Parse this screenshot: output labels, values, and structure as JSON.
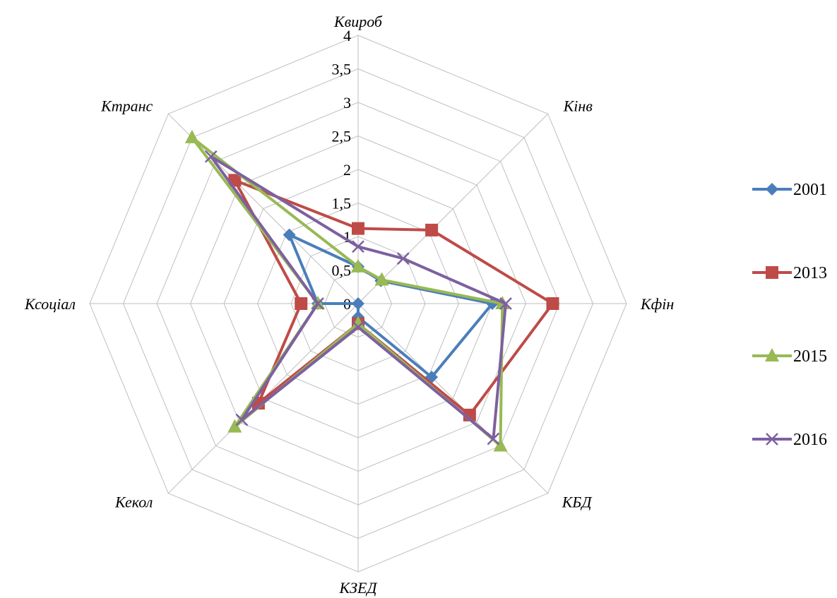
{
  "chart_data": {
    "type": "radar",
    "title": "",
    "axes": [
      "Квироб",
      "Кінв",
      "Кфін",
      "КБД",
      "КЗЕД",
      "Кекол",
      "Ксоціал",
      "Ктранс"
    ],
    "ticks": [
      "0",
      "0,5",
      "1",
      "1,5",
      "2",
      "2,5",
      "3",
      "3,5",
      "4"
    ],
    "range": [
      0,
      4
    ],
    "grid": true,
    "legend_position": "right",
    "series": [
      {
        "name": "2001",
        "color": "#4a7ebb",
        "marker": "diamond",
        "values": [
          0.55,
          0.48,
          2.0,
          1.55,
          0.2,
          0.0,
          0.6,
          1.45
        ]
      },
      {
        "name": "2013",
        "color": "#be4b48",
        "marker": "square",
        "values": [
          1.12,
          1.55,
          2.9,
          2.35,
          0.3,
          2.1,
          0.85,
          2.6
        ]
      },
      {
        "name": "2015",
        "color": "#98b954",
        "marker": "triangle",
        "values": [
          0.55,
          0.5,
          2.15,
          3.0,
          0.3,
          2.6,
          0.6,
          3.5
        ]
      },
      {
        "name": "2016",
        "color": "#7d60a0",
        "marker": "cross",
        "values": [
          0.85,
          0.95,
          2.2,
          2.85,
          0.35,
          2.45,
          0.6,
          3.1
        ]
      }
    ]
  }
}
